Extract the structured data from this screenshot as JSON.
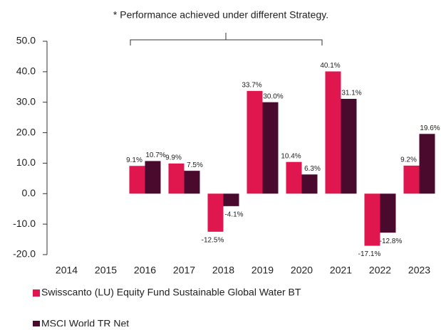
{
  "chart_data": {
    "type": "bar",
    "annotation": "* Performance achieved under different Strategy.",
    "categories": [
      "2014",
      "2015",
      "2016",
      "2017",
      "2018",
      "2019",
      "2020",
      "2021",
      "2022",
      "2023"
    ],
    "series": [
      {
        "name": "Swisscanto (LU) Equity Fund Sustainable Global Water BT",
        "color": "#e0174f",
        "values": [
          null,
          null,
          9.1,
          9.9,
          -12.5,
          33.7,
          10.4,
          40.1,
          -17.1,
          9.2
        ],
        "value_labels": [
          null,
          null,
          "9.1%",
          "9.9%",
          "-12.5%",
          "33.7%",
          "10.4%",
          "40.1%",
          "-17.1%",
          "9.2%"
        ]
      },
      {
        "name": "MSCI World TR Net",
        "color": "#4a0a2e",
        "values": [
          null,
          null,
          10.7,
          7.5,
          -4.1,
          30.0,
          6.3,
          31.1,
          -12.8,
          19.6
        ],
        "value_labels": [
          null,
          null,
          "10.7%",
          "7.5%",
          "-4.1%",
          "30.0%",
          "6.3%",
          "31.1%",
          "-12.8%",
          "19.6%"
        ]
      }
    ],
    "ylim": [
      -20,
      50
    ],
    "yticks": [
      {
        "value": -20,
        "label": "-20.0"
      },
      {
        "value": -10,
        "label": "-10.0"
      },
      {
        "value": 0,
        "label": "0.0"
      },
      {
        "value": 10,
        "label": "10.0"
      },
      {
        "value": 20,
        "label": "20.0"
      },
      {
        "value": 30,
        "label": "30.0"
      },
      {
        "value": 40,
        "label": "40.0"
      },
      {
        "value": 50,
        "label": "50.0"
      }
    ],
    "grid": false
  }
}
